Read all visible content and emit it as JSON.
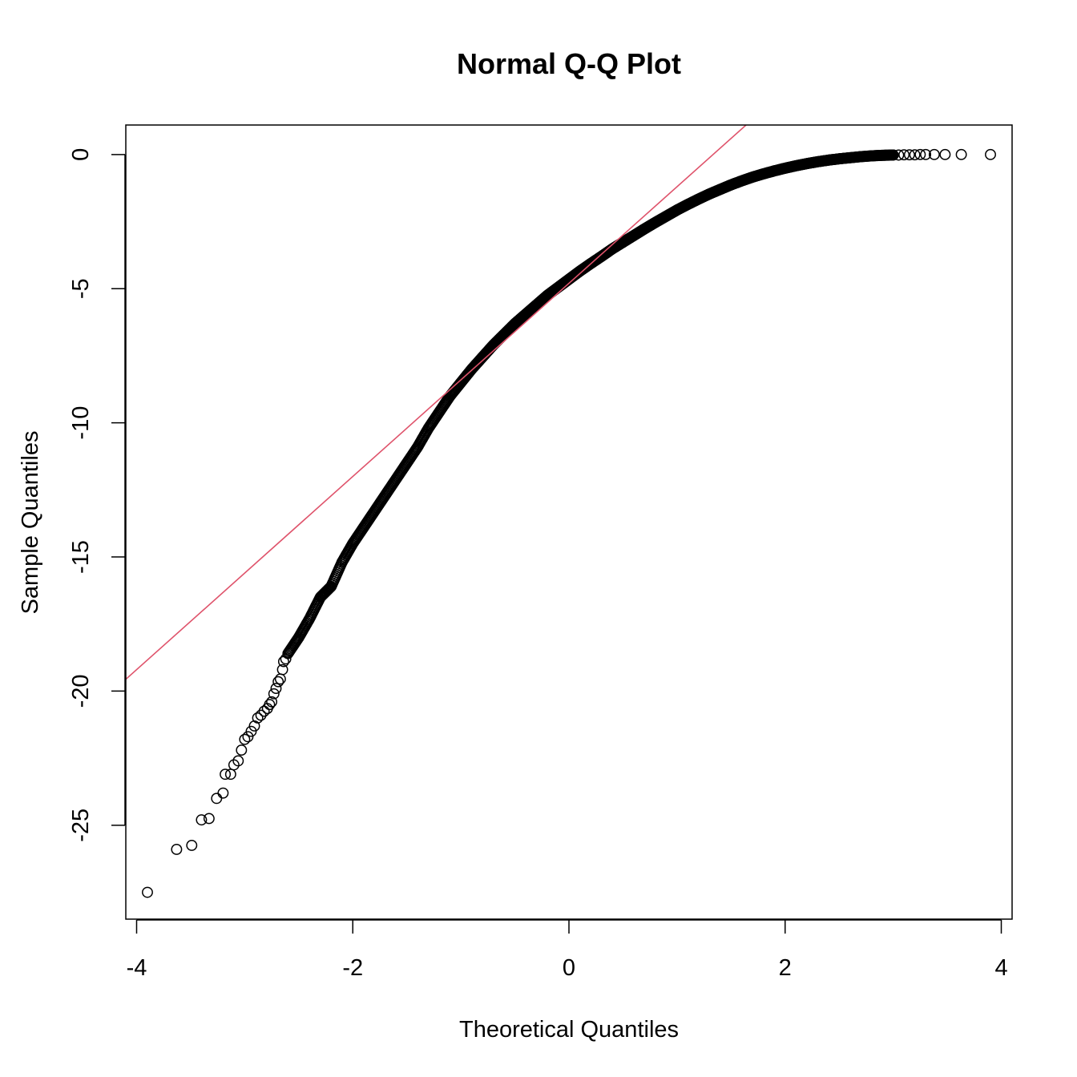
{
  "chart_data": {
    "type": "scatter",
    "title": "Normal Q-Q Plot",
    "xlabel": "Theoretical Quantiles",
    "ylabel": "Sample Quantiles",
    "xlim": [
      -4.1,
      4.1
    ],
    "ylim": [
      -28.5,
      1.1
    ],
    "xticks": [
      -4,
      -2,
      0,
      2,
      4
    ],
    "xtick_labels": [
      "-4",
      "-2",
      "0",
      "2",
      "4"
    ],
    "yticks": [
      0,
      -5,
      -10,
      -15,
      -20,
      -25
    ],
    "ytick_labels": [
      "0",
      "-5",
      "-10",
      "-15",
      "-20",
      "-25"
    ],
    "grid": false,
    "legend": "none",
    "reference_line": {
      "intercept": -4.8,
      "slope": 3.6,
      "color": "#DF536B"
    },
    "point_color": "#000000",
    "curve": {
      "x": [
        -2.6,
        -2.5,
        -2.4,
        -2.3,
        -2.2,
        -2.1,
        -2.0,
        -1.9,
        -1.8,
        -1.7,
        -1.6,
        -1.5,
        -1.4,
        -1.3,
        -1.2,
        -1.1,
        -1.0,
        -0.9,
        -0.8,
        -0.7,
        -0.6,
        -0.5,
        -0.4,
        -0.3,
        -0.2,
        -0.1,
        0.0,
        0.1,
        0.2,
        0.3,
        0.4,
        0.5,
        0.6,
        0.7,
        0.8,
        0.9,
        1.0,
        1.1,
        1.2,
        1.3,
        1.4,
        1.5,
        1.6,
        1.7,
        1.8,
        1.9,
        2.0,
        2.1,
        2.2,
        2.3,
        2.4,
        2.5,
        2.6,
        2.7,
        2.8,
        2.9,
        3.0
      ],
      "y": [
        -18.6,
        -18.0,
        -17.3,
        -16.5,
        -16.1,
        -15.2,
        -14.5,
        -13.9,
        -13.3,
        -12.7,
        -12.1,
        -11.5,
        -10.9,
        -10.2,
        -9.6,
        -9.0,
        -8.5,
        -8.0,
        -7.55,
        -7.1,
        -6.7,
        -6.3,
        -5.95,
        -5.6,
        -5.25,
        -4.95,
        -4.65,
        -4.35,
        -4.07,
        -3.8,
        -3.52,
        -3.27,
        -3.02,
        -2.77,
        -2.53,
        -2.3,
        -2.07,
        -1.86,
        -1.66,
        -1.47,
        -1.3,
        -1.13,
        -0.98,
        -0.84,
        -0.72,
        -0.61,
        -0.51,
        -0.42,
        -0.34,
        -0.27,
        -0.21,
        -0.16,
        -0.12,
        -0.08,
        -0.05,
        -0.03,
        -0.02
      ]
    },
    "tail_points": [
      {
        "x": -3.9,
        "y": -27.5
      },
      {
        "x": -3.63,
        "y": -25.9
      },
      {
        "x": -3.49,
        "y": -25.75
      },
      {
        "x": -3.4,
        "y": -24.8
      },
      {
        "x": -3.33,
        "y": -24.75
      },
      {
        "x": -3.26,
        "y": -24.0
      },
      {
        "x": -3.2,
        "y": -23.8
      },
      {
        "x": -3.18,
        "y": -23.1
      },
      {
        "x": -3.13,
        "y": -23.1
      },
      {
        "x": -3.1,
        "y": -22.75
      },
      {
        "x": -3.06,
        "y": -22.6
      },
      {
        "x": -3.03,
        "y": -22.2
      },
      {
        "x": -3.0,
        "y": -21.8
      },
      {
        "x": -2.97,
        "y": -21.7
      },
      {
        "x": -2.94,
        "y": -21.5
      },
      {
        "x": -2.91,
        "y": -21.3
      },
      {
        "x": -2.88,
        "y": -21.0
      },
      {
        "x": -2.85,
        "y": -20.9
      },
      {
        "x": -2.82,
        "y": -20.75
      },
      {
        "x": -2.79,
        "y": -20.65
      },
      {
        "x": -2.77,
        "y": -20.5
      },
      {
        "x": -2.75,
        "y": -20.4
      },
      {
        "x": -2.73,
        "y": -20.1
      },
      {
        "x": -2.71,
        "y": -19.9
      },
      {
        "x": -2.69,
        "y": -19.65
      },
      {
        "x": -2.67,
        "y": -19.55
      },
      {
        "x": -2.65,
        "y": -19.2
      },
      {
        "x": -2.64,
        "y": -18.9
      },
      {
        "x": -2.62,
        "y": -18.8
      },
      {
        "x": 3.0,
        "y": -0.02
      },
      {
        "x": 3.05,
        "y": -0.02
      },
      {
        "x": 3.1,
        "y": -0.01
      },
      {
        "x": 3.15,
        "y": -0.01
      },
      {
        "x": 3.2,
        "y": -0.01
      },
      {
        "x": 3.25,
        "y": 0.0
      },
      {
        "x": 3.3,
        "y": 0.0
      },
      {
        "x": 3.38,
        "y": 0.0
      },
      {
        "x": 3.48,
        "y": 0.0
      },
      {
        "x": 3.63,
        "y": 0.0
      },
      {
        "x": 3.9,
        "y": 0.0
      }
    ]
  }
}
